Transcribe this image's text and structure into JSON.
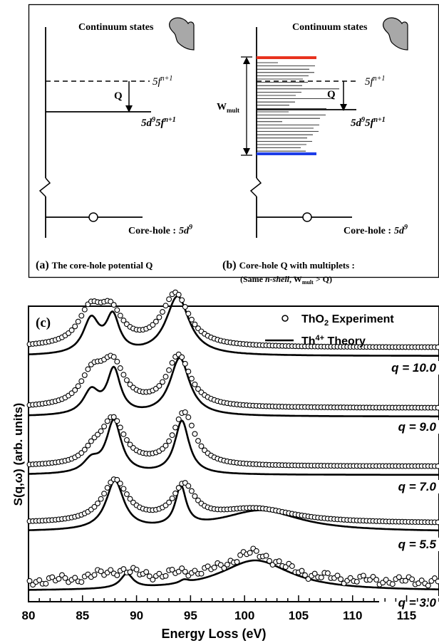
{
  "top_panel": {
    "a": {
      "continuum_label": "Continuum states",
      "level_upper": "5f",
      "level_upper_sup": "n+1",
      "q_label": "Q",
      "level_lower": "5d",
      "level_lower_sup1": "9",
      "level_lower_mid": "5f",
      "level_lower_sup2": "n+1",
      "core_hole_label": "Core-hole :",
      "core_hole_config": "5d",
      "core_hole_sup": "9",
      "caption_letter": "(a)",
      "caption_text": "The core-hole potential Q"
    },
    "b": {
      "continuum_label": "Continuum states",
      "wmult_label": "W",
      "wmult_sub": "mult",
      "level_upper": "5f",
      "level_upper_sup": "n+1",
      "q_label": "Q",
      "level_lower": "5d",
      "level_lower_sup1": "9",
      "level_lower_mid": "5f",
      "level_lower_sup2": "n+1",
      "core_hole_label": "Core-hole :",
      "core_hole_config": "5d",
      "core_hole_sup": "9",
      "caption_letter": "(b)",
      "caption_line1": "Core-hole Q with multiplets :",
      "caption_line2_a": "(Same ",
      "caption_line2_italic": "n-shell",
      "caption_line2_b": ", W",
      "caption_line2_sub": "mult",
      "caption_line2_c": " > Q)"
    }
  },
  "chart_data": {
    "type": "line",
    "panel_label": "(c)",
    "xlabel": "Energy Loss (eV)",
    "ylabel": "S(q,ω) (arb. units)",
    "xlim": [
      80,
      118
    ],
    "xticks": [
      80,
      85,
      90,
      95,
      100,
      105,
      110,
      115
    ],
    "legend": {
      "placement": "top-right",
      "experiment": "ThO",
      "experiment_sub": "2",
      "experiment_rest": " Experiment",
      "theory": "Th",
      "theory_sup": "4+",
      "theory_rest": " Theory"
    },
    "series": [
      {
        "q_label": "q = 10.0",
        "theory_peaks": [
          [
            85.8,
            0.9,
            0.62
          ],
          [
            87.8,
            0.75,
            0.65
          ],
          [
            93.8,
            1.3,
            1.06
          ]
        ],
        "exp_peaks": [
          [
            85.7,
            1.3,
            0.6
          ],
          [
            87.6,
            1.3,
            0.58
          ],
          [
            93.6,
            1.5,
            0.95
          ]
        ]
      },
      {
        "q_label": "q = 9.0",
        "theory_peaks": [
          [
            85.8,
            0.9,
            0.42
          ],
          [
            87.9,
            0.75,
            0.8
          ],
          [
            94.0,
            1.1,
            1.04
          ]
        ],
        "exp_peaks": [
          [
            85.9,
            1.3,
            0.55
          ],
          [
            87.8,
            1.3,
            0.72
          ],
          [
            93.9,
            1.3,
            0.92
          ]
        ]
      },
      {
        "q_label": "q = 7.0",
        "theory_peaks": [
          [
            85.8,
            0.9,
            0.22
          ],
          [
            87.9,
            0.85,
            0.95
          ],
          [
            94.2,
            0.8,
            0.96
          ]
        ],
        "exp_peaks": [
          [
            86.0,
            1.0,
            0.2
          ],
          [
            87.8,
            1.3,
            0.82
          ],
          [
            94.4,
            1.2,
            0.95
          ]
        ]
      },
      {
        "q_label": "q = 5.5",
        "theory_peaks": [
          [
            88.0,
            1.0,
            0.88
          ],
          [
            94.1,
            0.6,
            0.72
          ],
          [
            101.5,
            4.5,
            0.38
          ]
        ],
        "exp_peaks": [
          [
            88.0,
            1.4,
            0.75
          ],
          [
            94.4,
            1.2,
            0.62
          ],
          [
            101.0,
            4.5,
            0.25
          ]
        ]
      },
      {
        "q_label": "q = 3.0",
        "theory_peaks": [
          [
            89.1,
            0.7,
            0.26
          ],
          [
            94.4,
            0.5,
            0.06
          ],
          [
            101.0,
            4.0,
            0.55
          ]
        ],
        "exp_peaks": [
          [
            88.3,
            2.5,
            0.18
          ],
          [
            94.3,
            1.5,
            0.07
          ],
          [
            100.8,
            3.2,
            0.52
          ]
        ]
      }
    ]
  }
}
